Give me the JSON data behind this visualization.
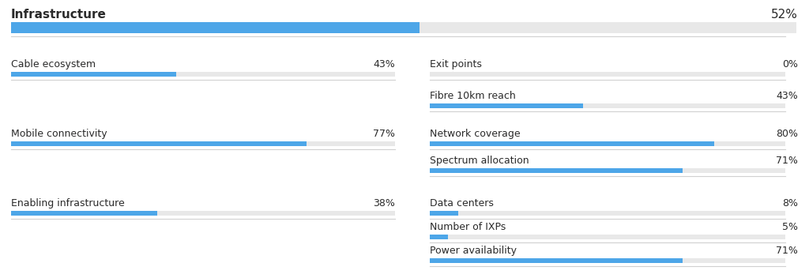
{
  "bg_color": "#ffffff",
  "bar_color": "#4da6e8",
  "track_color": "#e8e8e8",
  "text_color": "#2a2a2a",
  "divider_color": "#d0d0d0",
  "header": {
    "label": "Infrastructure",
    "value": 52
  },
  "left_items": [
    {
      "label": "Cable ecosystem",
      "value": 43
    },
    {
      "label": "Mobile connectivity",
      "value": 77
    },
    {
      "label": "Enabling infrastructure",
      "value": 38
    }
  ],
  "right_items": [
    {
      "label": "Exit points",
      "value": 0
    },
    {
      "label": "Fibre 10km reach",
      "value": 43
    },
    {
      "label": "Network coverage",
      "value": 80
    },
    {
      "label": "Spectrum allocation",
      "value": 71
    },
    {
      "label": "Data centers",
      "value": 8
    },
    {
      "label": "Number of IXPs",
      "value": 5
    },
    {
      "label": "Power availability",
      "value": 71
    }
  ],
  "font_family": "DejaVu Sans",
  "header_fontsize": 11,
  "item_fontsize": 9,
  "header_bold": true
}
